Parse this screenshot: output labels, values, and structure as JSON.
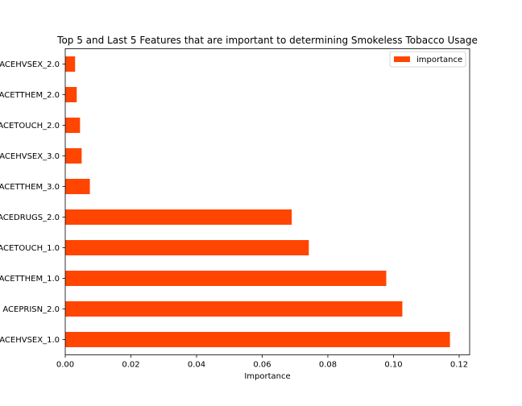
{
  "chart_data": {
    "type": "bar",
    "orientation": "horizontal",
    "title": "Top 5 and Last 5 Features that are important to determining Smokeless Tobacco Usage",
    "xlabel": "Importance",
    "ylabel": "",
    "categories": [
      "ACEHVSEX_1.0",
      "ACEPRISN_2.0",
      "ACETTHEM_1.0",
      "ACETOUCH_1.0",
      "ACEDRUGS_2.0",
      "ACETTHEM_3.0",
      "ACEHVSEX_3.0",
      "ACETOUCH_2.0",
      "ACETTHEM_2.0",
      "ACEHVSEX_2.0"
    ],
    "series": [
      {
        "name": "importance",
        "values": [
          0.1172,
          0.1027,
          0.0978,
          0.0742,
          0.069,
          0.0075,
          0.005,
          0.0045,
          0.0035,
          0.003
        ]
      }
    ],
    "xlim": [
      0,
      0.1232
    ],
    "xticks": [
      0.0,
      0.02,
      0.04,
      0.06,
      0.08,
      0.1,
      0.12
    ],
    "xtick_labels": [
      "0.00",
      "0.02",
      "0.04",
      "0.06",
      "0.08",
      "0.10",
      "0.12"
    ],
    "grid": false,
    "legend_position": "top-right",
    "colors": {
      "bar": "#ff4500",
      "axis": "#000000"
    }
  }
}
